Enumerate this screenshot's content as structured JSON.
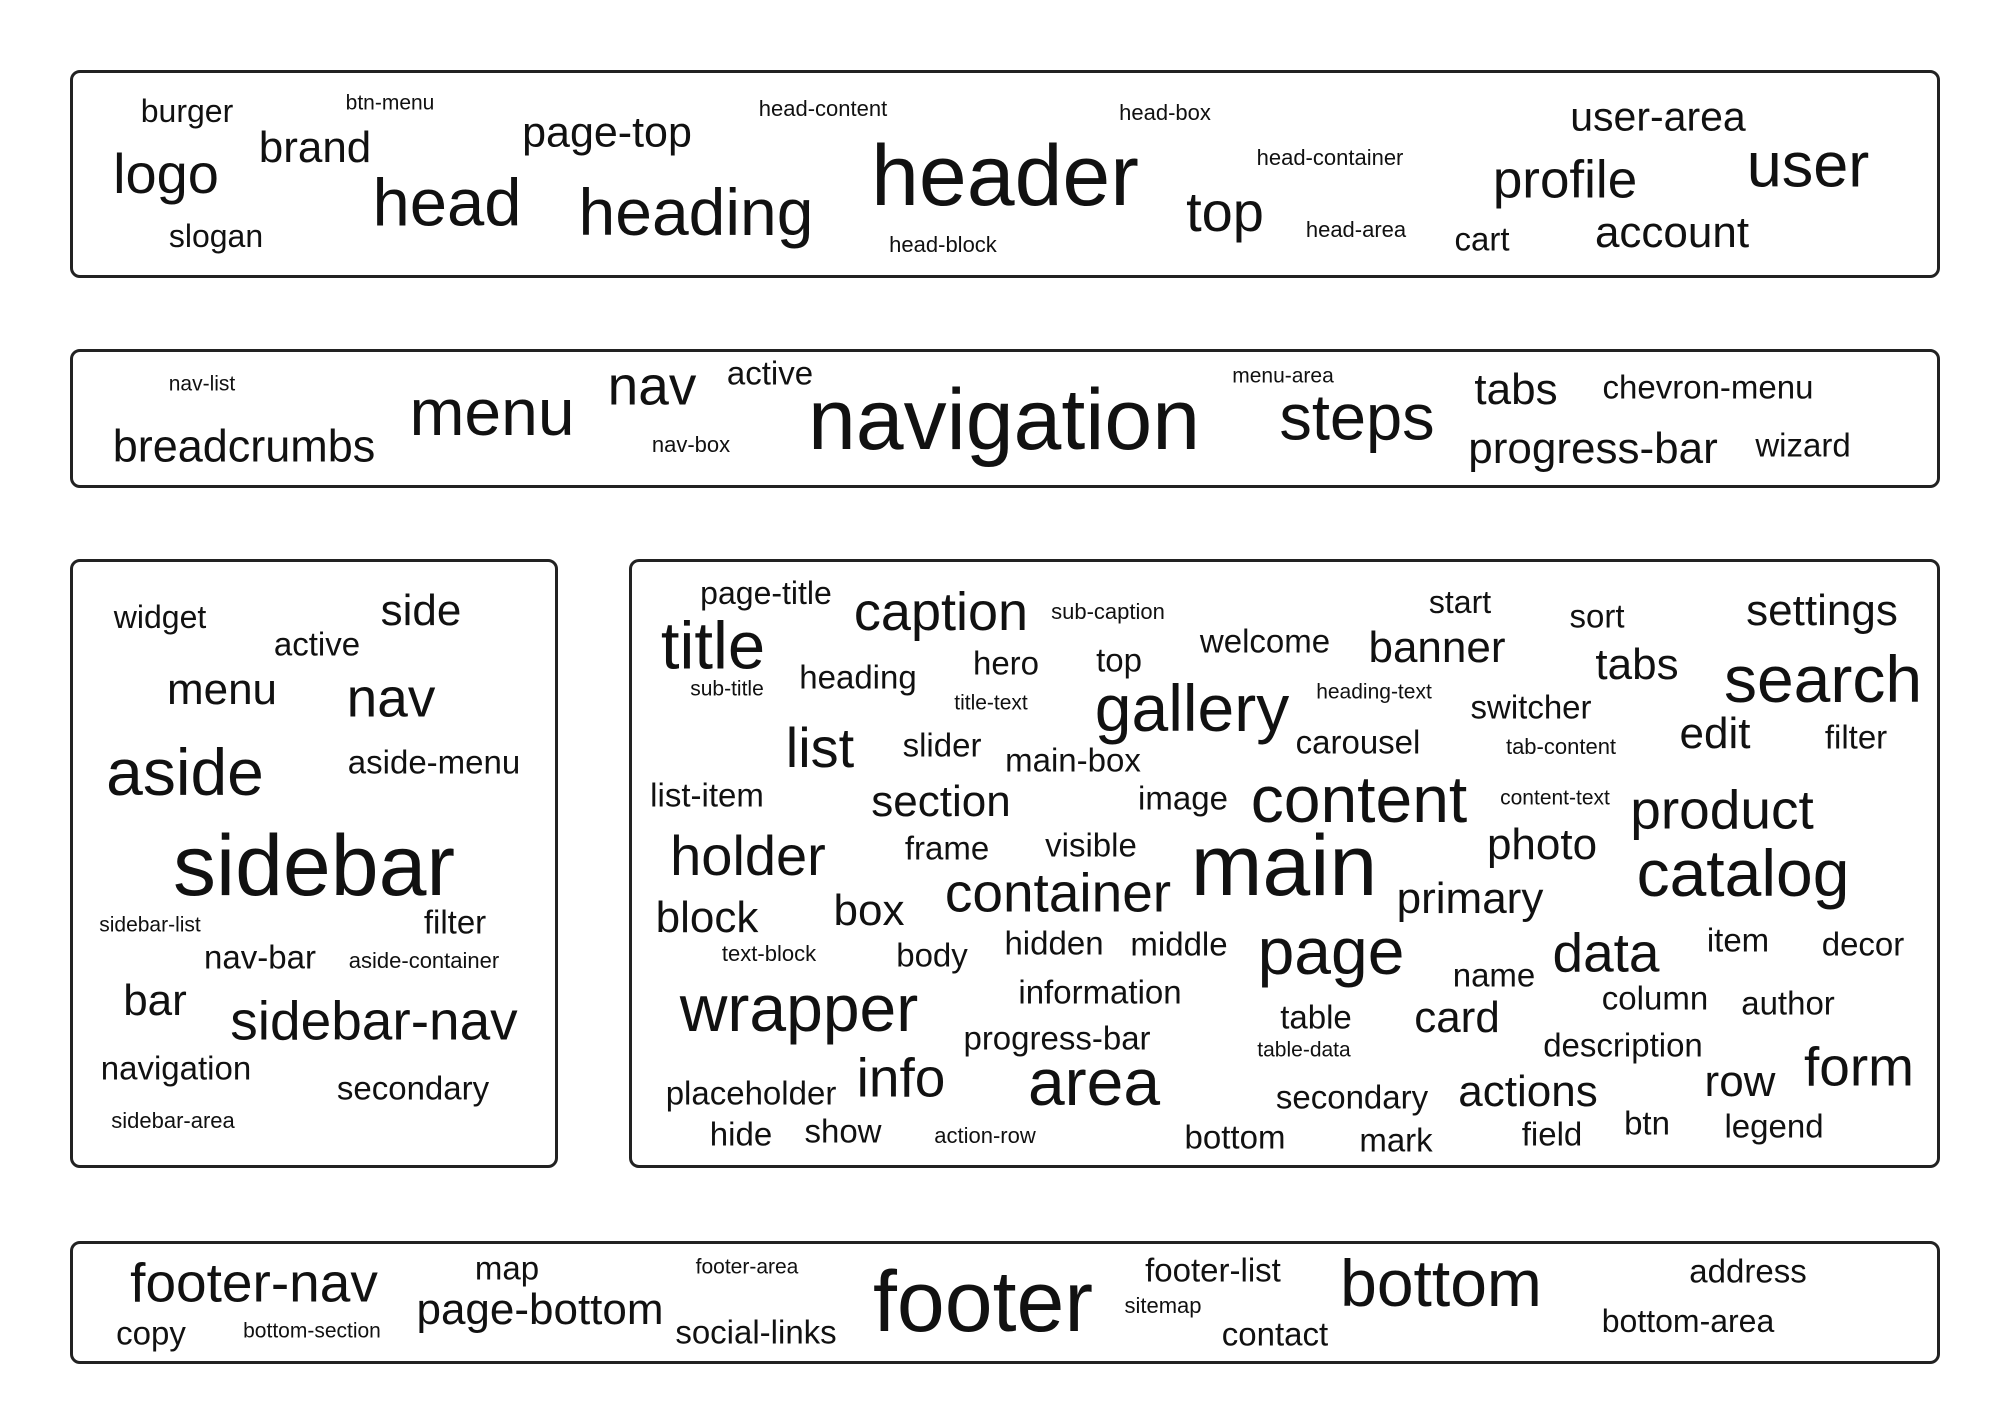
{
  "regions": {
    "header": {
      "words": [
        "burger",
        "btn-menu",
        "head-content",
        "head-box",
        "user-area",
        "brand",
        "page-top",
        "logo",
        "header",
        "head-container",
        "profile",
        "user",
        "head",
        "heading",
        "top",
        "slogan",
        "head-area",
        "cart",
        "account",
        "head-block"
      ]
    },
    "navigation": {
      "words": [
        "nav-list",
        "nav",
        "active",
        "menu-area",
        "tabs",
        "chevron-menu",
        "menu",
        "navigation",
        "steps",
        "breadcrumbs",
        "nav-box",
        "progress-bar",
        "wizard"
      ]
    },
    "sidebar": {
      "words": [
        "widget",
        "side",
        "active",
        "menu",
        "nav",
        "aside",
        "aside-menu",
        "sidebar",
        "sidebar-list",
        "filter",
        "nav-bar",
        "aside-container",
        "bar",
        "sidebar-nav",
        "navigation",
        "secondary",
        "sidebar-area"
      ]
    },
    "main": {
      "words": [
        "page-title",
        "caption",
        "sub-caption",
        "start",
        "sort",
        "settings",
        "title",
        "welcome",
        "banner",
        "hero",
        "top",
        "tabs",
        "search",
        "heading",
        "sub-title",
        "title-text",
        "heading-text",
        "gallery",
        "switcher",
        "list",
        "slider",
        "carousel",
        "tab-content",
        "edit",
        "filter",
        "main-box",
        "list-item",
        "section",
        "image",
        "content",
        "content-text",
        "product",
        "holder",
        "frame",
        "visible",
        "main",
        "photo",
        "catalog",
        "primary",
        "container",
        "block",
        "box",
        "item",
        "decor",
        "text-block",
        "body",
        "hidden",
        "middle",
        "page",
        "data",
        "name",
        "wrapper",
        "information",
        "column",
        "author",
        "table",
        "card",
        "progress-bar",
        "description",
        "table-data",
        "form",
        "info",
        "area",
        "row",
        "placeholder",
        "secondary",
        "actions",
        "hide",
        "show",
        "action-row",
        "bottom",
        "mark",
        "field",
        "btn",
        "legend"
      ]
    },
    "footer": {
      "words": [
        "footer-nav",
        "map",
        "footer-area",
        "footer-list",
        "bottom",
        "address",
        "copy",
        "bottom-section",
        "page-bottom",
        "footer",
        "sitemap",
        "social-links",
        "contact",
        "bottom-area"
      ]
    }
  }
}
